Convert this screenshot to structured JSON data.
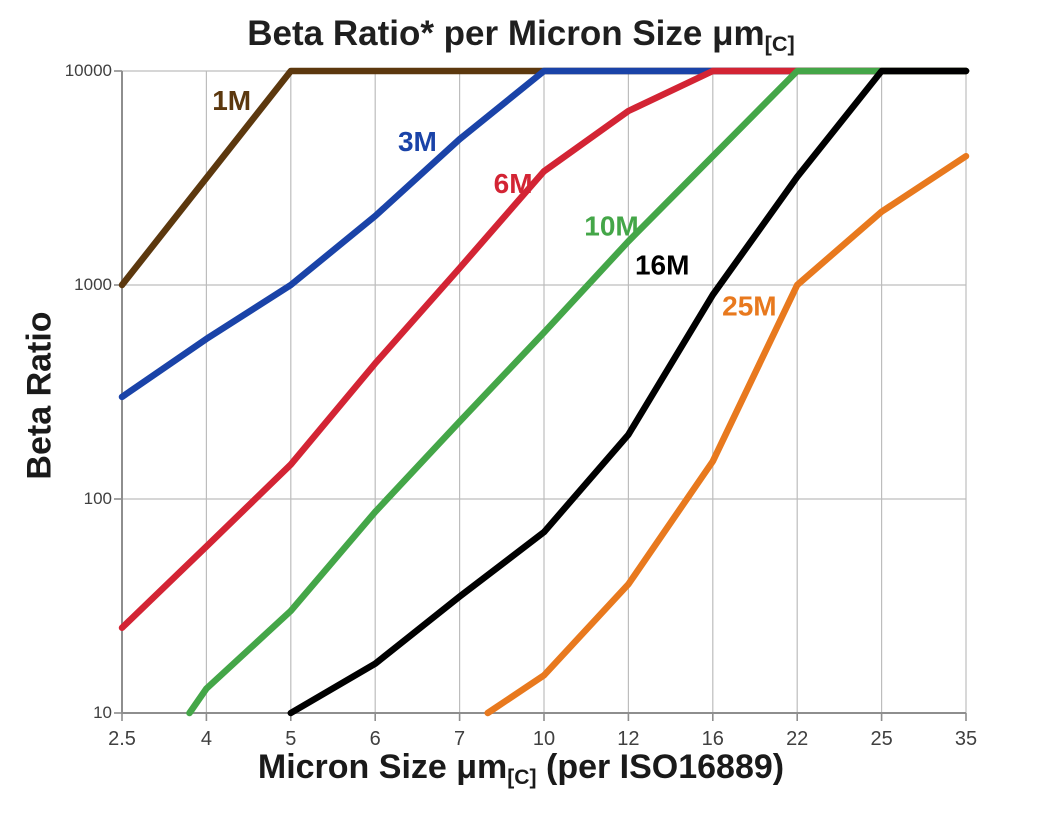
{
  "title": {
    "main": "Beta Ratio* per Micron Size μm",
    "subscript": "[C]"
  },
  "y_axis": {
    "title": "Beta Ratio",
    "tick_labels": [
      "10000",
      "1000",
      "100",
      "10"
    ],
    "tick_values": [
      10000,
      1000,
      100,
      10
    ]
  },
  "x_axis": {
    "title_pre": "Micron Size μm",
    "title_sub": "[C]",
    "title_post": " (per ISO16889)",
    "tick_labels": [
      "2.5",
      "4",
      "5",
      "6",
      "7",
      "10",
      "12",
      "16",
      "22",
      "25",
      "35"
    ]
  },
  "chart_data": {
    "type": "line",
    "title": "Beta Ratio* per Micron Size μm[C]",
    "xlabel": "Micron Size μm[C] (per ISO16889)",
    "ylabel": "Beta Ratio",
    "y_scale": "log",
    "ylim": [
      10,
      10000
    ],
    "x_ticks": [
      2.5,
      4,
      5,
      6,
      7,
      10,
      12,
      16,
      22,
      25,
      35
    ],
    "x_tick_spacing": "equal",
    "grid": true,
    "legend_position": "inline-labels",
    "series": [
      {
        "name": "1M",
        "color": "#5C380E",
        "points": [
          [
            2.5,
            1000
          ],
          [
            5,
            10000
          ],
          [
            35,
            10000
          ]
        ],
        "label_pos": [
          4.3,
          7300
        ]
      },
      {
        "name": "3M",
        "color": "#1A43A8",
        "points": [
          [
            2.5,
            300
          ],
          [
            4,
            560
          ],
          [
            5,
            1000
          ],
          [
            6,
            2100
          ],
          [
            7,
            4800
          ],
          [
            10,
            10000
          ],
          [
            35,
            10000
          ]
        ],
        "label_pos": [
          6.5,
          4700
        ]
      },
      {
        "name": "6M",
        "color": "#D32434",
        "points": [
          [
            2.5,
            25
          ],
          [
            4,
            60
          ],
          [
            5,
            145
          ],
          [
            6,
            430
          ],
          [
            7,
            1200
          ],
          [
            10,
            3400
          ],
          [
            12,
            6500
          ],
          [
            16,
            10000
          ],
          [
            35,
            10000
          ]
        ],
        "label_pos": [
          8.9,
          3000
        ]
      },
      {
        "name": "10M",
        "color": "#44A648",
        "points": [
          [
            3.7,
            10
          ],
          [
            4,
            13
          ],
          [
            5,
            30
          ],
          [
            6,
            87
          ],
          [
            7,
            230
          ],
          [
            10,
            600
          ],
          [
            12,
            1600
          ],
          [
            16,
            4000
          ],
          [
            22,
            10000
          ],
          [
            35,
            10000
          ]
        ],
        "label_pos": [
          11.6,
          1900
        ]
      },
      {
        "name": "16M",
        "color": "#000000",
        "points": [
          [
            5,
            10
          ],
          [
            6,
            17
          ],
          [
            7,
            35
          ],
          [
            10,
            70
          ],
          [
            12,
            200
          ],
          [
            16,
            900
          ],
          [
            22,
            3200
          ],
          [
            25,
            10000
          ],
          [
            35,
            10000
          ]
        ],
        "label_pos": [
          13.6,
          1250
        ]
      },
      {
        "name": "25M",
        "color": "#E8791E",
        "points": [
          [
            8,
            10
          ],
          [
            10,
            15
          ],
          [
            12,
            40
          ],
          [
            16,
            150
          ],
          [
            22,
            1000
          ],
          [
            25,
            2200
          ],
          [
            35,
            4000
          ]
        ],
        "label_pos": [
          18.6,
          800
        ]
      }
    ],
    "style_colors": {
      "grid": "#BDBDBD",
      "axis": "#8E8E8E",
      "tick_text": "#404040",
      "title_text": "#1f1f1f"
    }
  }
}
